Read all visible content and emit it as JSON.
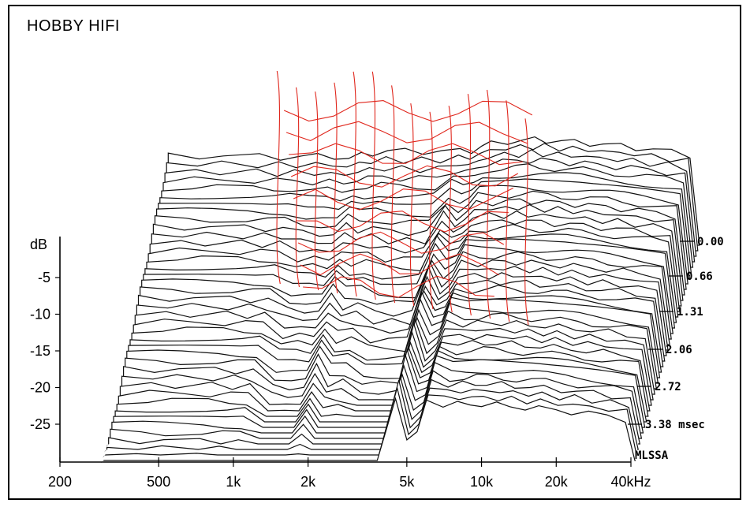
{
  "header": {
    "brand": "HOBBY HIFI"
  },
  "chart_data": {
    "type": "waterfall",
    "title": "",
    "xlabel": "",
    "ylabel": "dB",
    "x_scale": "log",
    "x_unit_suffix": "Hz",
    "x_ticks": [
      {
        "value": 200,
        "label": "200"
      },
      {
        "value": 500,
        "label": "500"
      },
      {
        "value": 1000,
        "label": "1k"
      },
      {
        "value": 2000,
        "label": "2k"
      },
      {
        "value": 5000,
        "label": "5k"
      },
      {
        "value": 10000,
        "label": "10k"
      },
      {
        "value": 20000,
        "label": "20k"
      },
      {
        "value": 40000,
        "label": "40kHz"
      }
    ],
    "y_ticks": [
      {
        "value": -5,
        "label": "-5"
      },
      {
        "value": -10,
        "label": "-10"
      },
      {
        "value": -15,
        "label": "-15"
      },
      {
        "value": -20,
        "label": "-20"
      },
      {
        "value": -25,
        "label": "-25"
      }
    ],
    "z_unit": "msec",
    "z_ticks": [
      {
        "value": 0.0,
        "label": "0.00"
      },
      {
        "value": 0.66,
        "label": "0.66"
      },
      {
        "value": 1.31,
        "label": "1.31"
      },
      {
        "value": 2.06,
        "label": "2.06"
      },
      {
        "value": 2.72,
        "label": "2.72"
      },
      {
        "value": 3.38,
        "label": "3.38 msec"
      }
    ],
    "footer_label": "MLSSA",
    "slice_count": 40,
    "colors": {
      "slices": "#111111",
      "overlay": "#e0261c"
    },
    "freq_points": [
      300,
      400,
      500,
      700,
      850,
      1000,
      1200,
      1400,
      1600,
      1800,
      2000,
      2300,
      2700,
      3200,
      3800,
      4500,
      5000,
      5500,
      6000,
      7000,
      8000,
      9000,
      10000,
      11500,
      13000,
      15000,
      17000,
      20000,
      23000,
      27000,
      32000,
      38000
    ],
    "initial_response_db": [
      -1.5,
      -1.5,
      -1.5,
      -1.7,
      -2.0,
      -1.8,
      -1.6,
      -1.6,
      -2.6,
      -1.2,
      -0.3,
      0.6,
      0.5,
      0.4,
      0.6,
      0.4,
      0.8,
      2.4,
      3.5,
      4.5,
      4.8,
      5.2,
      5.0,
      4.6,
      4.2,
      3.8,
      3.2,
      2.6,
      2.0,
      1.2,
      0.2,
      -1.0
    ]
  }
}
